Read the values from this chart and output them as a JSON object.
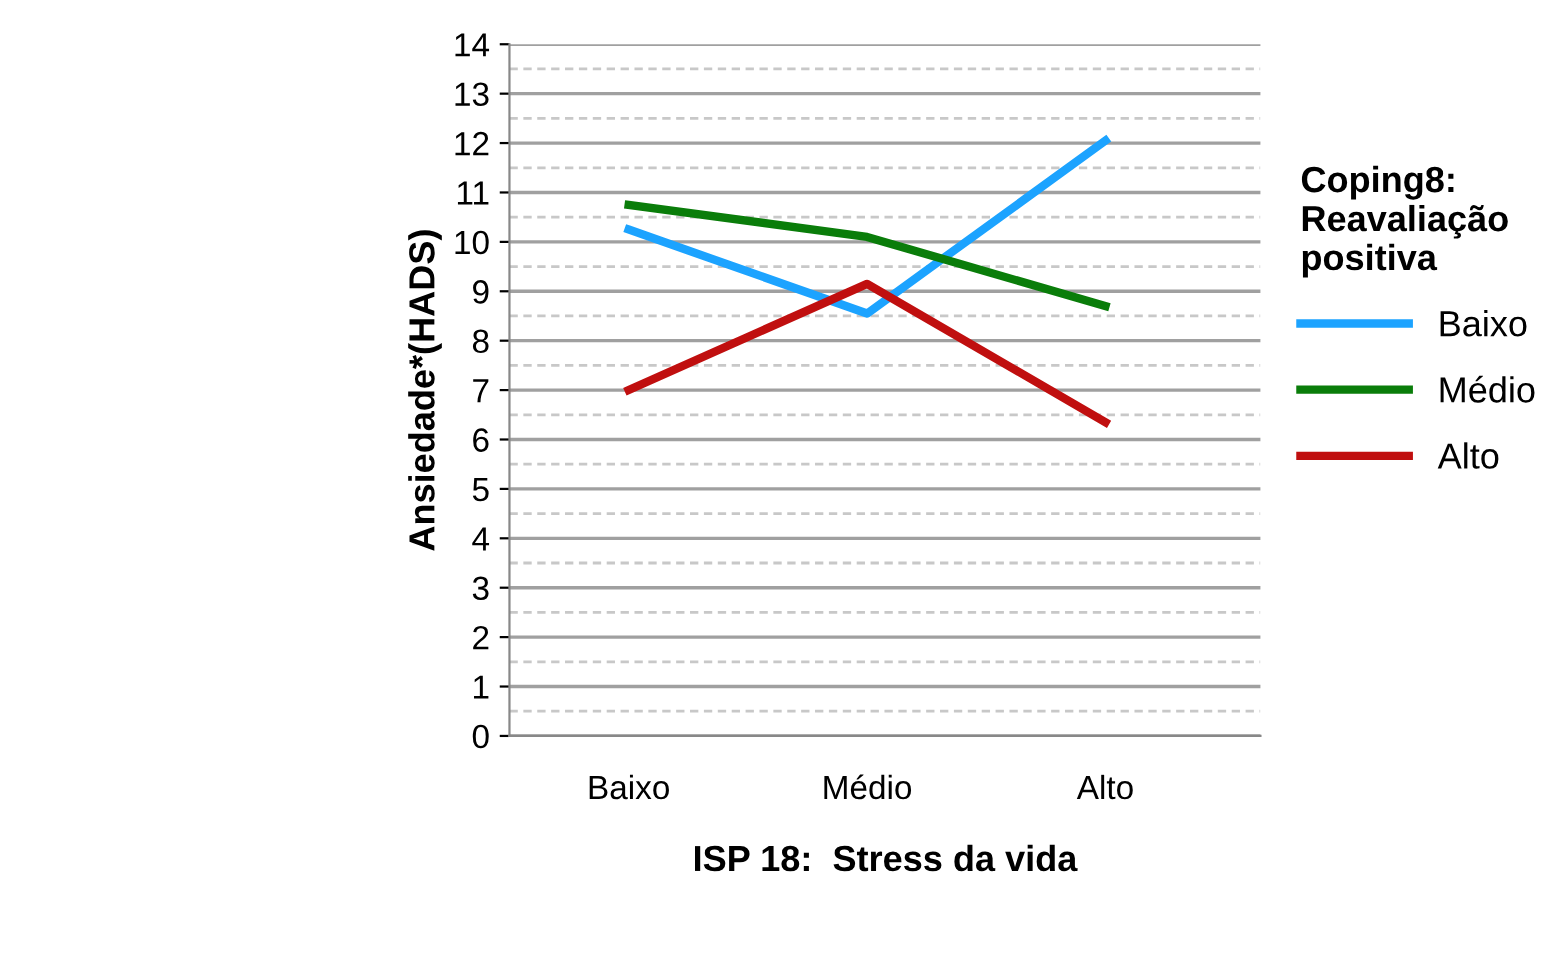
{
  "chart_data": {
    "type": "line",
    "xlabel": "ISP 18:  Stress da vida",
    "ylabel": "Ansiedade*(HADS)",
    "legend_title": "Coping8:\nReavaliação\npositiva",
    "categories": [
      "Baixo",
      "Médio",
      "Alto"
    ],
    "series": [
      {
        "name": "Baixo",
        "color": "#1ca3ff",
        "values": [
          10.25,
          8.55,
          12.05
        ]
      },
      {
        "name": "Médio",
        "color": "#0a7d0a",
        "values": [
          10.75,
          10.1,
          8.7
        ]
      },
      {
        "name": "Alto",
        "color": "#c00f0f",
        "values": [
          7.0,
          9.15,
          6.35
        ]
      }
    ],
    "ylim": [
      0,
      14
    ],
    "yticks": [
      0,
      1,
      2,
      3,
      4,
      5,
      6,
      7,
      8,
      9,
      10,
      11,
      12,
      13,
      14
    ],
    "grid": "y",
    "legend": "right",
    "marker": "none",
    "line_style": "solid"
  }
}
